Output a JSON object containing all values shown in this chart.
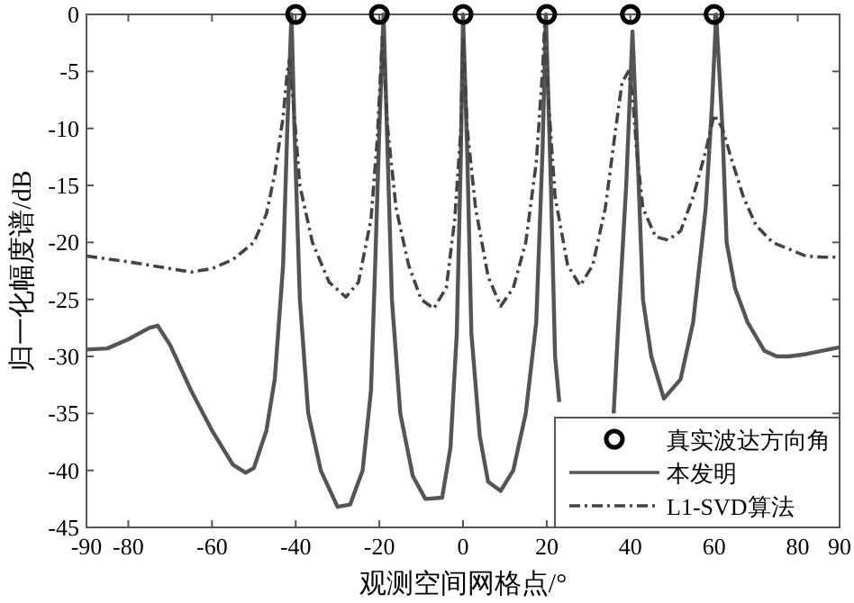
{
  "chart_data": {
    "type": "line",
    "xlabel": "观测空间网格点/°",
    "ylabel": "归一化幅度谱/dB",
    "xlim": [
      -90,
      90
    ],
    "ylim": [
      -45,
      0
    ],
    "xticks": [
      -90,
      -80,
      -60,
      -40,
      -20,
      0,
      20,
      40,
      60,
      80,
      90
    ],
    "yticks": [
      -45,
      -40,
      -35,
      -30,
      -25,
      -20,
      -15,
      -10,
      -5,
      0
    ],
    "legend": "bottom right",
    "series": [
      {
        "name": "真实波达方向角",
        "type": "scatter",
        "marker": "circle",
        "color": "#000000",
        "x": [
          -40,
          -20,
          0,
          20,
          40,
          60
        ],
        "values": [
          0,
          0,
          0,
          0,
          0,
          0
        ]
      },
      {
        "name": "本发明",
        "line_style": "solid",
        "color": "#555555",
        "x": [
          -90,
          -85,
          -80,
          -75,
          -73,
          -70,
          -65,
          -60,
          -55,
          -52,
          -50,
          -47,
          -45,
          -43,
          -42,
          -41,
          -40.3,
          -39,
          -37,
          -34,
          -30,
          -27,
          -24,
          -22,
          -21,
          -20,
          -19,
          -18.2,
          -17,
          -15,
          -12,
          -9,
          -5,
          -3,
          -1.5,
          -0.5,
          0,
          1,
          2,
          4,
          6,
          9,
          12,
          15,
          17.5,
          19,
          19.8,
          21,
          22,
          23,
          25,
          28,
          31,
          34,
          36,
          37,
          39,
          40.5,
          42,
          43,
          45,
          48,
          52,
          55,
          58,
          59.5,
          60.5,
          62,
          63,
          65,
          68,
          72,
          75,
          78,
          82,
          86,
          90
        ],
        "values": [
          -29.4,
          -29.3,
          -28.5,
          -27.5,
          -27.3,
          -29,
          -33,
          -36.5,
          -39.5,
          -40.2,
          -39.8,
          -36.5,
          -32,
          -22,
          -10,
          0,
          -10,
          -25,
          -35,
          -40,
          -43.2,
          -43,
          -40,
          -33,
          -22,
          -10,
          0,
          -10,
          -25,
          -35,
          -40.5,
          -42.5,
          -42.4,
          -38,
          -28,
          -12,
          0,
          -12,
          -28,
          -37,
          -41,
          -41.8,
          -40,
          -35,
          -27,
          -12,
          0,
          -15,
          -30,
          -34,
          null,
          null,
          null,
          null,
          -35,
          -28,
          -15,
          -1.5,
          -15,
          -25,
          -30,
          -33.7,
          -32,
          -27,
          -17,
          -8,
          0,
          -10,
          -20,
          -24,
          -27,
          -29.5,
          -30,
          -30,
          -29.8,
          -29.5,
          -29.2
        ]
      },
      {
        "name": "L1-SVD算法",
        "line_style": "dashdot",
        "color": "#444444",
        "x": [
          -90,
          -80,
          -70,
          -65,
          -60,
          -55,
          -50,
          -47,
          -45,
          -43,
          -42,
          -41.5,
          -40.5,
          -39,
          -36,
          -32,
          -28,
          -25,
          -22,
          -20.5,
          -19.3,
          -18,
          -16,
          -13,
          -10,
          -7,
          -4,
          -2,
          -0.5,
          0,
          1,
          3,
          6,
          9,
          12,
          15,
          17.5,
          19,
          19.5,
          20.5,
          22,
          25,
          28,
          31,
          34,
          36.5,
          38,
          39.5,
          40.5,
          41.5,
          43,
          46,
          49,
          52,
          55,
          58,
          60,
          62,
          64,
          67,
          70,
          74,
          78,
          82,
          86,
          90
        ],
        "values": [
          -21.2,
          -21.7,
          -22.3,
          -22.6,
          -22.3,
          -21.5,
          -20,
          -17.5,
          -14,
          -9,
          -5,
          -4,
          -8,
          -15,
          -20,
          -23.5,
          -24.8,
          -23.5,
          -18,
          -11,
          -2,
          -10,
          -17,
          -22,
          -25,
          -25.8,
          -24,
          -18,
          -10,
          -2,
          -10,
          -17,
          -23,
          -25.6,
          -24,
          -20,
          -13,
          -5,
          -1,
          -8,
          -16,
          -22,
          -23.8,
          -22,
          -17,
          -10,
          -6,
          -5,
          -7,
          -12,
          -17,
          -19.5,
          -19.8,
          -19,
          -16,
          -12,
          -8.8,
          -10,
          -12.5,
          -16,
          -18.5,
          -20,
          -20.6,
          -21.2,
          -21.3,
          -21.3
        ]
      }
    ]
  }
}
